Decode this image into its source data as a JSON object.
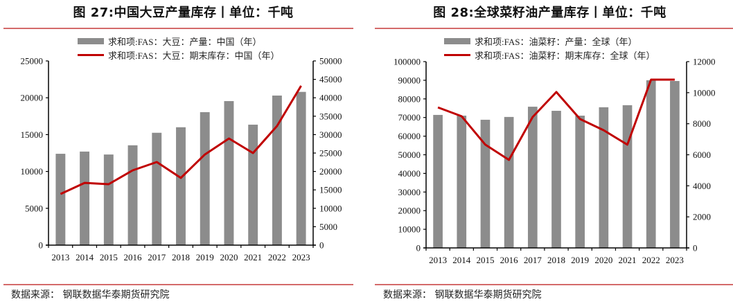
{
  "charts": [
    {
      "title": "图 27:中国大豆产量库存丨单位：千吨",
      "source": "数据来源：  钢联数据华泰期货研究院",
      "legend": [
        "求和项:FAS：大豆：产量：中国（年）",
        "求和项:FAS：大豆：期末库存：中国（年）"
      ]
    },
    {
      "title": "图 28:全球菜籽油产量库存丨单位：千吨",
      "source": "数据来源：  钢联数据华泰期货研究院",
      "legend": [
        "求和项:FAS：油菜籽：产量：全球（年）",
        "求和项:FAS：油菜籽：期末库存：全球（年）"
      ]
    }
  ],
  "colors": {
    "bar": "#8c8c8c",
    "line": "#c00000",
    "rule": "#d46a6a",
    "axis": "#000000"
  },
  "chart_data": [
    {
      "type": "bar",
      "title": "图 27:中国大豆产量库存丨单位：千吨",
      "categories": [
        "2013",
        "2014",
        "2015",
        "2016",
        "2017",
        "2018",
        "2019",
        "2020",
        "2021",
        "2022",
        "2023"
      ],
      "series": [
        {
          "name": "求和项:FAS：大豆：产量：中国（年）",
          "type": "bar",
          "axis": "left",
          "values": [
            12400,
            12700,
            12300,
            13550,
            15250,
            16000,
            18050,
            19550,
            16350,
            20300,
            20800
          ]
        },
        {
          "name": "求和项:FAS：大豆：期末库存：中国（年）",
          "type": "line",
          "axis": "right",
          "values": [
            13900,
            16900,
            16550,
            20300,
            22550,
            18250,
            24600,
            28950,
            25000,
            32350,
            43250
          ]
        }
      ],
      "ylim_left": [
        0,
        25000
      ],
      "yticks_left": [
        0,
        5000,
        10000,
        15000,
        20000,
        25000
      ],
      "ylim_right": [
        0,
        50000
      ],
      "yticks_right": [
        0,
        5000,
        10000,
        15000,
        20000,
        25000,
        30000,
        35000,
        40000,
        45000,
        50000
      ],
      "xlabel": "",
      "ylabel": "",
      "legend_position": "top",
      "grid": false
    },
    {
      "type": "bar",
      "title": "图 28:全球菜籽油产量库存丨单位：千吨",
      "categories": [
        "2013",
        "2014",
        "2015",
        "2016",
        "2017",
        "2018",
        "2019",
        "2020",
        "2021",
        "2022",
        "2023"
      ],
      "series": [
        {
          "name": "求和项:FAS：油菜籽：产量：全球（年）",
          "type": "bar",
          "axis": "left",
          "values": [
            71400,
            71000,
            68800,
            70300,
            75800,
            73600,
            71000,
            75500,
            76600,
            90000,
            89600
          ]
        },
        {
          "name": "求和项:FAS：油菜籽：期末库存：全球（年）",
          "type": "line",
          "axis": "right",
          "values": [
            9050,
            8480,
            6650,
            5670,
            8430,
            10040,
            8300,
            7580,
            6650,
            10840,
            10840
          ]
        }
      ],
      "ylim_left": [
        0,
        100000
      ],
      "yticks_left": [
        0,
        10000,
        20000,
        30000,
        40000,
        50000,
        60000,
        70000,
        80000,
        90000,
        100000
      ],
      "ylim_right": [
        0,
        12000
      ],
      "yticks_right": [
        0,
        2000,
        4000,
        6000,
        8000,
        10000,
        12000
      ],
      "xlabel": "",
      "ylabel": "",
      "legend_position": "top",
      "grid": false
    }
  ]
}
